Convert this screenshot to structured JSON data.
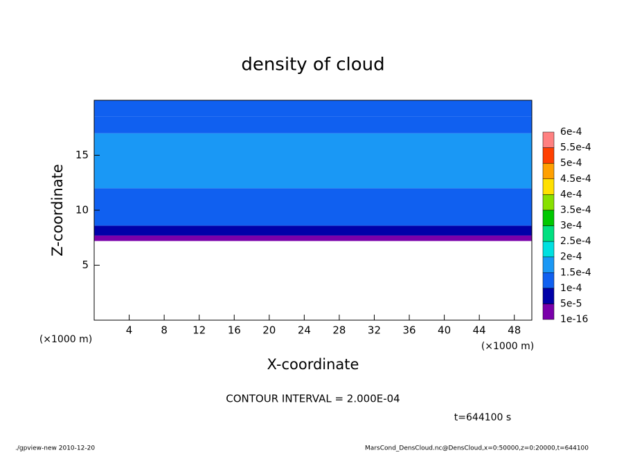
{
  "chart_data": {
    "type": "contour",
    "title": "density of cloud",
    "x_label": "X-coordinate",
    "y_label": "Z-coordinate",
    "x_unit_label": "(×1000 m)",
    "y_unit_label": "(×1000 m)",
    "xlim": [
      0,
      50
    ],
    "xticks": [
      4,
      8,
      12,
      16,
      20,
      24,
      28,
      32,
      36,
      40,
      44,
      48
    ],
    "ylim": [
      0,
      20
    ],
    "yticks": [
      5,
      10,
      15
    ],
    "z_edges": [
      7.2,
      7.7,
      8.6,
      10,
      12,
      17,
      18.5,
      20
    ],
    "values": [
      3e-05,
      8e-05,
      0.00011,
      0.00013,
      0.00016,
      0.00013,
      0.00011
    ],
    "levels": [
      {
        "value": 1e-16,
        "label": "1e-16"
      },
      {
        "value": 5e-05,
        "label": "5e-5"
      },
      {
        "value": 0.0001,
        "label": "1e-4"
      },
      {
        "value": 0.00015,
        "label": "1.5e-4"
      },
      {
        "value": 0.0002,
        "label": "2e-4"
      },
      {
        "value": 0.00025,
        "label": "2.5e-4"
      },
      {
        "value": 0.0003,
        "label": "3e-4"
      },
      {
        "value": 0.00035,
        "label": "3.5e-4"
      },
      {
        "value": 0.0004,
        "label": "4e-4"
      },
      {
        "value": 0.00045,
        "label": "4.5e-4"
      },
      {
        "value": 0.0005,
        "label": "5e-4"
      },
      {
        "value": 0.00055,
        "label": "5.5e-4"
      },
      {
        "value": 0.0006,
        "label": "6e-4"
      }
    ],
    "level_colors": [
      "#7a00aa",
      "#0000a8",
      "#1060f0",
      "#1a98f5",
      "#00e0e0",
      "#00e080",
      "#00c800",
      "#88e000",
      "#ffe000",
      "#ffa000",
      "#ff4000",
      "#ff8080"
    ],
    "contour_interval": "CONTOUR INTERVAL = 2.000E-04",
    "time_label": "t=644100 s",
    "footer_left": "./gpview-new  2010-12-20",
    "footer_right": "MarsCond_DensCloud.nc@DensCloud,x=0:50000,z=0:20000,t=644100"
  }
}
